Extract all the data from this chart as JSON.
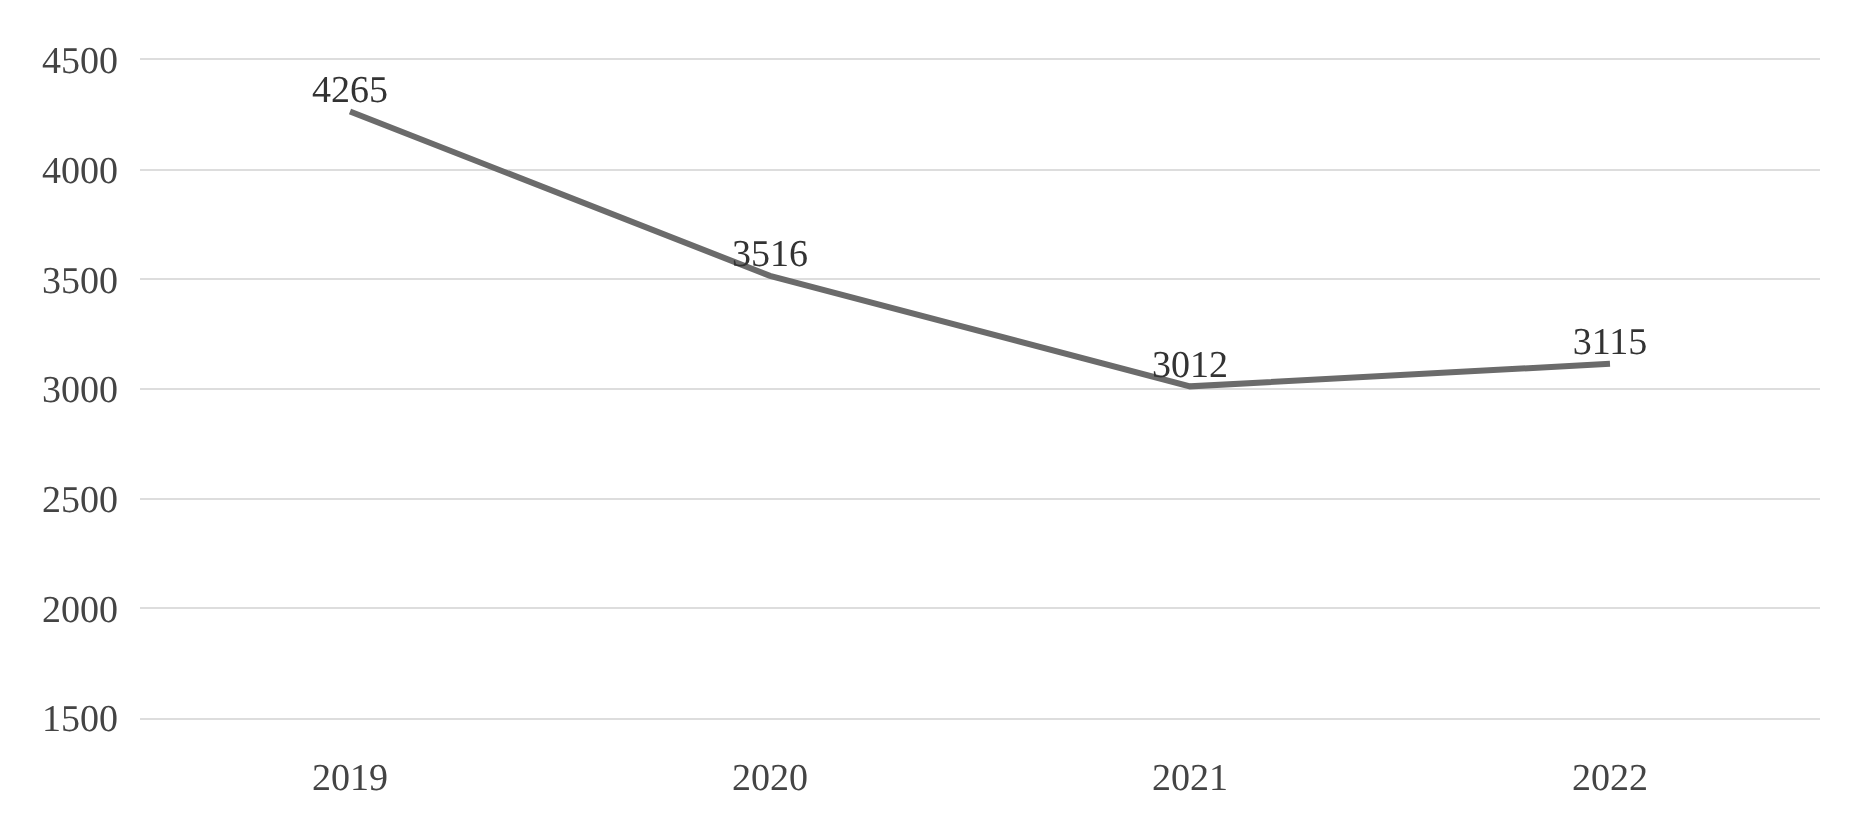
{
  "chart_data": {
    "type": "line",
    "categories": [
      "2019",
      "2020",
      "2021",
      "2022"
    ],
    "series": [
      {
        "color": "#6b6b6b",
        "values": [
          4265,
          3516,
          3012,
          3115
        ]
      }
    ],
    "ylim": [
      1500,
      4500
    ],
    "yticks": [
      1500,
      2000,
      2500,
      3000,
      3500,
      4000,
      4500
    ],
    "grid": "y",
    "data_labels": true,
    "marker": "none",
    "line_style": "solid"
  }
}
